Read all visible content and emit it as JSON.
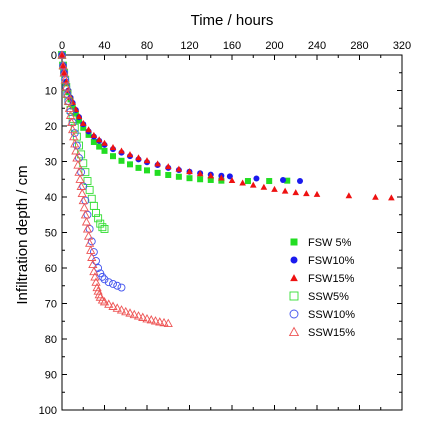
{
  "chart_data": {
    "type": "scatter",
    "xlabel": "Time / hours",
    "ylabel": "Infiltration depth / cm",
    "x_axis_position": "top",
    "y_axis_inverted": true,
    "xlim": [
      0,
      320
    ],
    "ylim": [
      0,
      100
    ],
    "xticks": [
      0,
      40,
      80,
      120,
      160,
      200,
      240,
      280,
      320
    ],
    "yticks": [
      0,
      10,
      20,
      30,
      40,
      50,
      60,
      70,
      80,
      90,
      100
    ],
    "grid": false,
    "legend_position": "lower-right",
    "series": [
      {
        "name": "FSW 5%",
        "marker": "square",
        "filled": true,
        "color": "#22dd22",
        "points": [
          [
            0,
            0
          ],
          [
            1,
            3
          ],
          [
            2,
            5
          ],
          [
            4,
            8
          ],
          [
            6,
            10.5
          ],
          [
            8,
            12.5
          ],
          [
            10,
            14.5
          ],
          [
            13,
            16.5
          ],
          [
            16,
            18.5
          ],
          [
            20,
            20.5
          ],
          [
            25,
            22.5
          ],
          [
            30,
            24.5
          ],
          [
            35,
            25.8
          ],
          [
            40,
            27
          ],
          [
            48,
            28.5
          ],
          [
            56,
            29.8
          ],
          [
            64,
            30.8
          ],
          [
            72,
            31.8
          ],
          [
            80,
            32.5
          ],
          [
            90,
            33.2
          ],
          [
            100,
            33.8
          ],
          [
            110,
            34.3
          ],
          [
            120,
            34.7
          ],
          [
            130,
            35
          ],
          [
            140,
            35.2
          ],
          [
            150,
            35.4
          ],
          [
            175,
            35.5
          ],
          [
            195,
            35.5
          ],
          [
            212,
            35.4
          ]
        ]
      },
      {
        "name": "FSW10%",
        "marker": "circle",
        "filled": true,
        "color": "#1a1aee",
        "points": [
          [
            0,
            0
          ],
          [
            1,
            3
          ],
          [
            2,
            5
          ],
          [
            4,
            7.5
          ],
          [
            6,
            10
          ],
          [
            8,
            12
          ],
          [
            10,
            13.5
          ],
          [
            13,
            15.5
          ],
          [
            16,
            17.5
          ],
          [
            20,
            19.5
          ],
          [
            25,
            21.5
          ],
          [
            30,
            23
          ],
          [
            35,
            24.2
          ],
          [
            40,
            25.3
          ],
          [
            48,
            26.5
          ],
          [
            56,
            27.5
          ],
          [
            64,
            28.5
          ],
          [
            72,
            29.4
          ],
          [
            80,
            30.2
          ],
          [
            90,
            31
          ],
          [
            100,
            31.8
          ],
          [
            110,
            32.4
          ],
          [
            120,
            32.9
          ],
          [
            130,
            33.3
          ],
          [
            140,
            33.7
          ],
          [
            150,
            34
          ],
          [
            158,
            34.2
          ],
          [
            183,
            34.8
          ],
          [
            208,
            35.2
          ],
          [
            224,
            35.5
          ]
        ]
      },
      {
        "name": "FSW15%",
        "marker": "triangle",
        "filled": true,
        "color": "#ee1111",
        "points": [
          [
            0,
            0
          ],
          [
            1,
            3
          ],
          [
            2,
            5
          ],
          [
            4,
            7.5
          ],
          [
            6,
            9.8
          ],
          [
            8,
            11.8
          ],
          [
            10,
            13.3
          ],
          [
            13,
            15.3
          ],
          [
            16,
            17.3
          ],
          [
            20,
            19.2
          ],
          [
            25,
            21
          ],
          [
            30,
            22.6
          ],
          [
            35,
            23.8
          ],
          [
            40,
            24.8
          ],
          [
            48,
            26
          ],
          [
            56,
            27
          ],
          [
            64,
            28
          ],
          [
            72,
            28.9
          ],
          [
            80,
            29.7
          ],
          [
            90,
            30.6
          ],
          [
            100,
            31.4
          ],
          [
            110,
            32.1
          ],
          [
            120,
            32.8
          ],
          [
            130,
            33.4
          ],
          [
            140,
            34
          ],
          [
            150,
            34.6
          ],
          [
            160,
            35.3
          ],
          [
            170,
            36
          ],
          [
            180,
            36.6
          ],
          [
            190,
            37.2
          ],
          [
            200,
            37.8
          ],
          [
            210,
            38.3
          ],
          [
            220,
            38.7
          ],
          [
            230,
            39
          ],
          [
            240,
            39.2
          ],
          [
            270,
            39.6
          ],
          [
            295,
            40
          ],
          [
            310,
            40.2
          ]
        ]
      },
      {
        "name": "SSW5%",
        "marker": "square",
        "filled": false,
        "color": "#33dd33",
        "points": [
          [
            0,
            0
          ],
          [
            1,
            3
          ],
          [
            2,
            5
          ],
          [
            3,
            7
          ],
          [
            4,
            9
          ],
          [
            5,
            11
          ],
          [
            6,
            13
          ],
          [
            8,
            15.5
          ],
          [
            10,
            18
          ],
          [
            12,
            20.5
          ],
          [
            14,
            23
          ],
          [
            16,
            25.5
          ],
          [
            18,
            28
          ],
          [
            20,
            30.5
          ],
          [
            22,
            33
          ],
          [
            24,
            35.5
          ],
          [
            26,
            38
          ],
          [
            28,
            40.5
          ],
          [
            30,
            42.5
          ],
          [
            32,
            44.5
          ],
          [
            34,
            46
          ],
          [
            36,
            47.5
          ],
          [
            38,
            48.5
          ],
          [
            40,
            49
          ]
        ]
      },
      {
        "name": "SSW10%",
        "marker": "circle",
        "filled": false,
        "color": "#4455ee",
        "points": [
          [
            0,
            0
          ],
          [
            1,
            3
          ],
          [
            2,
            5
          ],
          [
            3,
            7
          ],
          [
            4,
            9
          ],
          [
            5,
            11
          ],
          [
            6,
            13
          ],
          [
            8,
            16
          ],
          [
            10,
            19
          ],
          [
            12,
            22
          ],
          [
            14,
            25.5
          ],
          [
            16,
            29
          ],
          [
            18,
            33
          ],
          [
            20,
            37
          ],
          [
            22,
            41
          ],
          [
            24,
            45
          ],
          [
            26,
            49
          ],
          [
            28,
            52.5
          ],
          [
            30,
            55.5
          ],
          [
            32,
            58
          ],
          [
            34,
            60
          ],
          [
            36,
            61.5
          ],
          [
            38,
            62.5
          ],
          [
            40,
            63.2
          ],
          [
            44,
            64
          ],
          [
            48,
            64.5
          ],
          [
            52,
            65
          ],
          [
            56,
            65.5
          ]
        ]
      },
      {
        "name": "SSW15%",
        "marker": "triangle",
        "filled": false,
        "color": "#ee5555",
        "points": [
          [
            0,
            0
          ],
          [
            1,
            3
          ],
          [
            2,
            5
          ],
          [
            3,
            7
          ],
          [
            4,
            9
          ],
          [
            5,
            11
          ],
          [
            6,
            13
          ],
          [
            7,
            15
          ],
          [
            8,
            17
          ],
          [
            9,
            19
          ],
          [
            10,
            21
          ],
          [
            11,
            23
          ],
          [
            12,
            25
          ],
          [
            13,
            27
          ],
          [
            14,
            29
          ],
          [
            15,
            31
          ],
          [
            16,
            33
          ],
          [
            17,
            35
          ],
          [
            18,
            37
          ],
          [
            19,
            39
          ],
          [
            20,
            41
          ],
          [
            21,
            43
          ],
          [
            22,
            45
          ],
          [
            23,
            47
          ],
          [
            24,
            49
          ],
          [
            25,
            51
          ],
          [
            26,
            53
          ],
          [
            27,
            55
          ],
          [
            28,
            57
          ],
          [
            29,
            59
          ],
          [
            30,
            61
          ],
          [
            31,
            62.5
          ],
          [
            32,
            64
          ],
          [
            33,
            65.5
          ],
          [
            34,
            66.5
          ],
          [
            35,
            67.5
          ],
          [
            36,
            68.2
          ],
          [
            38,
            69
          ],
          [
            40,
            69.5
          ],
          [
            44,
            70.2
          ],
          [
            48,
            70.8
          ],
          [
            52,
            71.3
          ],
          [
            56,
            71.8
          ],
          [
            60,
            72.3
          ],
          [
            64,
            72.7
          ],
          [
            68,
            73.1
          ],
          [
            72,
            73.5
          ],
          [
            76,
            73.9
          ],
          [
            80,
            74.3
          ],
          [
            84,
            74.6
          ],
          [
            88,
            74.9
          ],
          [
            92,
            75.2
          ],
          [
            96,
            75.4
          ],
          [
            100,
            75.6
          ]
        ]
      }
    ]
  }
}
